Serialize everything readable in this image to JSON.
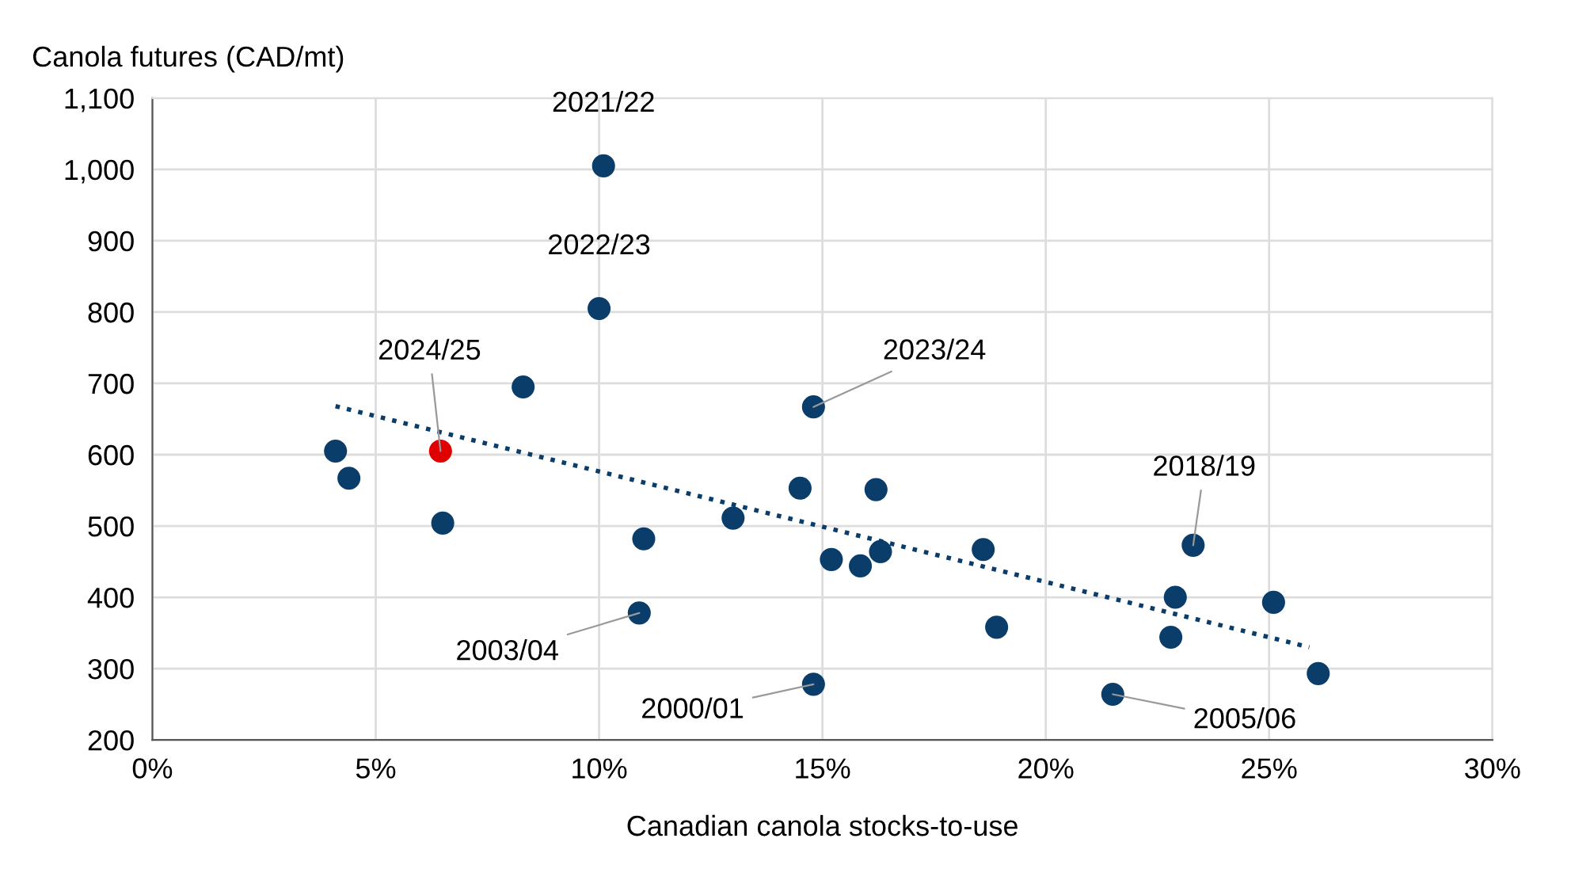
{
  "chart_data": {
    "type": "scatter",
    "xlabel": "Canadian canola stocks-to-use",
    "ylabel": "Canola futures (CAD/mt)",
    "xlim": [
      0,
      30
    ],
    "xticks": [
      {
        "value": 0,
        "label": "0%"
      },
      {
        "value": 5,
        "label": "5%"
      },
      {
        "value": 10,
        "label": "10%"
      },
      {
        "value": 15,
        "label": "15%"
      },
      {
        "value": 20,
        "label": "20%"
      },
      {
        "value": 25,
        "label": "25%"
      },
      {
        "value": 30,
        "label": "30%"
      }
    ],
    "ylim": [
      200,
      1100
    ],
    "yticks": [
      200,
      300,
      400,
      500,
      600,
      700,
      800,
      900,
      {
        "value": 1000,
        "label": "1,000"
      },
      {
        "value": 1100,
        "label": "1,100"
      }
    ],
    "grid": true,
    "marker": "circle",
    "series": [
      {
        "color": "#0b3d6b",
        "x": [
          4.1,
          4.4,
          6.5,
          8.3,
          10.1,
          10.0,
          11.0,
          10.9,
          13.0,
          14.5,
          14.8,
          14.8,
          15.2,
          15.85,
          16.2,
          16.3,
          18.6,
          18.9,
          21.5,
          22.8,
          22.9,
          23.3,
          25.1,
          26.1
        ],
        "values": [
          605,
          567,
          504,
          695,
          1005,
          805,
          482,
          378,
          511,
          553,
          667,
          278,
          453,
          444,
          551,
          464,
          467,
          358,
          264,
          344,
          400,
          473,
          393,
          293
        ]
      },
      {
        "color": "#e00000",
        "x": [
          6.45
        ],
        "values": [
          605
        ]
      },
      {
        "type": "line",
        "color": "#0b3d6b",
        "line_style": "dotted",
        "marker": "none",
        "x": [
          4.1,
          25.9
        ],
        "values": [
          668,
          330
        ]
      }
    ],
    "annotations": [
      {
        "text": "2021/22",
        "x": 10.1,
        "y": 1005
      },
      {
        "text": "2022/23",
        "x": 10.0,
        "y": 805
      },
      {
        "text": "2024/25",
        "x": 6.45,
        "y": 605
      },
      {
        "text": "2023/24",
        "x": 14.8,
        "y": 667
      },
      {
        "text": "2018/19",
        "x": 23.3,
        "y": 473
      },
      {
        "text": "2003/04",
        "x": 10.9,
        "y": 378
      },
      {
        "text": "2000/01",
        "x": 14.8,
        "y": 278
      },
      {
        "text": "2005/06",
        "x": 21.5,
        "y": 264
      }
    ]
  }
}
